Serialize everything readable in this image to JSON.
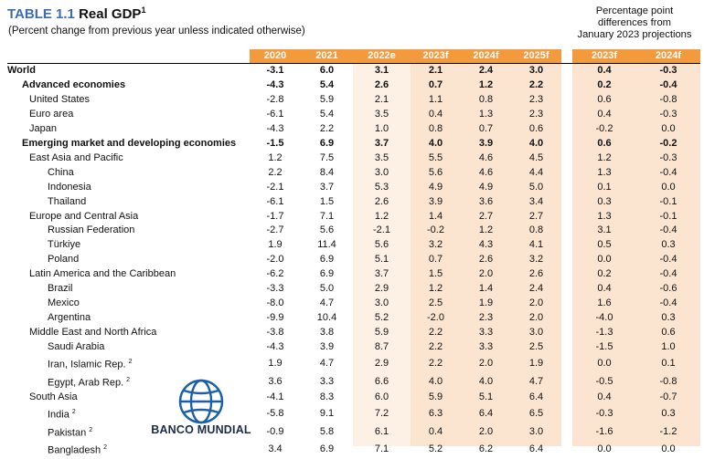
{
  "title": {
    "label": "TABLE 1.1",
    "main": "Real GDP",
    "sup": "1"
  },
  "subtitle": "(Percent change from previous year unless indicated otherwise)",
  "pp_header": [
    "Percentage point",
    "differences from",
    "January 2023 projections"
  ],
  "columns": [
    "2020",
    "2021",
    "2022e",
    "2023f",
    "2024f",
    "2025f",
    "2023f",
    "2024f"
  ],
  "logo_text": "BANCO MUNDIAL",
  "colors": {
    "header_orange": "#f39a3d",
    "light_orange": "#fbe5d0",
    "pale_orange": "#fdf1e6",
    "title_blue": "#3b6bb0"
  },
  "rows": [
    {
      "name": "World",
      "indent": 0,
      "bold": true,
      "values": [
        "-3.1",
        "6.0",
        "3.1",
        "2.1",
        "2.4",
        "3.0",
        "0.4",
        "-0.3"
      ]
    },
    {
      "name": "Advanced economies",
      "indent": 1,
      "bold": true,
      "values": [
        "-4.3",
        "5.4",
        "2.6",
        "0.7",
        "1.2",
        "2.2",
        "0.2",
        "-0.4"
      ]
    },
    {
      "name": "United States",
      "indent": 2,
      "bold": false,
      "values": [
        "-2.8",
        "5.9",
        "2.1",
        "1.1",
        "0.8",
        "2.3",
        "0.6",
        "-0.8"
      ]
    },
    {
      "name": "Euro area",
      "indent": 2,
      "bold": false,
      "values": [
        "-6.1",
        "5.4",
        "3.5",
        "0.4",
        "1.3",
        "2.3",
        "0.4",
        "-0.3"
      ]
    },
    {
      "name": "Japan",
      "indent": 2,
      "bold": false,
      "values": [
        "-4.3",
        "2.2",
        "1.0",
        "0.8",
        "0.7",
        "0.6",
        "-0.2",
        "0.0"
      ]
    },
    {
      "name": "Emerging market and developing economies",
      "indent": 1,
      "bold": true,
      "values": [
        "-1.5",
        "6.9",
        "3.7",
        "4.0",
        "3.9",
        "4.0",
        "0.6",
        "-0.2"
      ]
    },
    {
      "name": "East Asia and Pacific",
      "indent": 2,
      "bold": false,
      "values": [
        "1.2",
        "7.5",
        "3.5",
        "5.5",
        "4.6",
        "4.5",
        "1.2",
        "-0.3"
      ]
    },
    {
      "name": "China",
      "indent": 3,
      "bold": false,
      "values": [
        "2.2",
        "8.4",
        "3.0",
        "5.6",
        "4.6",
        "4.4",
        "1.3",
        "-0.4"
      ]
    },
    {
      "name": "Indonesia",
      "indent": 3,
      "bold": false,
      "values": [
        "-2.1",
        "3.7",
        "5.3",
        "4.9",
        "4.9",
        "5.0",
        "0.1",
        "0.0"
      ]
    },
    {
      "name": "Thailand",
      "indent": 3,
      "bold": false,
      "values": [
        "-6.1",
        "1.5",
        "2.6",
        "3.9",
        "3.6",
        "3.4",
        "0.3",
        "-0.1"
      ]
    },
    {
      "name": "Europe and Central Asia",
      "indent": 2,
      "bold": false,
      "values": [
        "-1.7",
        "7.1",
        "1.2",
        "1.4",
        "2.7",
        "2.7",
        "1.3",
        "-0.1"
      ]
    },
    {
      "name": "Russian Federation",
      "indent": 3,
      "bold": false,
      "values": [
        "-2.7",
        "5.6",
        "-2.1",
        "-0.2",
        "1.2",
        "0.8",
        "3.1",
        "-0.4"
      ]
    },
    {
      "name": "Türkiye",
      "indent": 3,
      "bold": false,
      "values": [
        "1.9",
        "11.4",
        "5.6",
        "3.2",
        "4.3",
        "4.1",
        "0.5",
        "0.3"
      ]
    },
    {
      "name": "Poland",
      "indent": 3,
      "bold": false,
      "values": [
        "-2.0",
        "6.9",
        "5.1",
        "0.7",
        "2.6",
        "3.2",
        "0.0",
        "-0.4"
      ]
    },
    {
      "name": "Latin America and the Caribbean",
      "indent": 2,
      "bold": false,
      "values": [
        "-6.2",
        "6.9",
        "3.7",
        "1.5",
        "2.0",
        "2.6",
        "0.2",
        "-0.4"
      ]
    },
    {
      "name": "Brazil",
      "indent": 3,
      "bold": false,
      "values": [
        "-3.3",
        "5.0",
        "2.9",
        "1.2",
        "1.4",
        "2.4",
        "0.4",
        "-0.6"
      ]
    },
    {
      "name": "Mexico",
      "indent": 3,
      "bold": false,
      "values": [
        "-8.0",
        "4.7",
        "3.0",
        "2.5",
        "1.9",
        "2.0",
        "1.6",
        "-0.4"
      ]
    },
    {
      "name": "Argentina",
      "indent": 3,
      "bold": false,
      "values": [
        "-9.9",
        "10.4",
        "5.2",
        "-2.0",
        "2.3",
        "2.0",
        "-4.0",
        "0.3"
      ]
    },
    {
      "name": "Middle East and North Africa",
      "indent": 2,
      "bold": false,
      "values": [
        "-3.8",
        "3.8",
        "5.9",
        "2.2",
        "3.3",
        "3.0",
        "-1.3",
        "0.6"
      ]
    },
    {
      "name": "Saudi Arabia",
      "indent": 3,
      "bold": false,
      "values": [
        "-4.3",
        "3.9",
        "8.7",
        "2.2",
        "3.3",
        "2.5",
        "-1.5",
        "1.0"
      ]
    },
    {
      "name": "Iran, Islamic Rep.",
      "sup": "2",
      "indent": 3,
      "bold": false,
      "values": [
        "1.9",
        "4.7",
        "2.9",
        "2.2",
        "2.0",
        "1.9",
        "0.0",
        "0.1"
      ]
    },
    {
      "name": "Egypt, Arab Rep.",
      "sup": "2",
      "indent": 3,
      "bold": false,
      "values": [
        "3.6",
        "3.3",
        "6.6",
        "4.0",
        "4.0",
        "4.7",
        "-0.5",
        "-0.8"
      ]
    },
    {
      "name": "South Asia",
      "indent": 2,
      "bold": false,
      "values": [
        "-4.1",
        "8.3",
        "6.0",
        "5.9",
        "5.1",
        "6.4",
        "0.4",
        "-0.7"
      ]
    },
    {
      "name": "India",
      "sup": "2",
      "indent": 3,
      "bold": false,
      "values": [
        "-5.8",
        "9.1",
        "7.2",
        "6.3",
        "6.4",
        "6.5",
        "-0.3",
        "0.3"
      ]
    },
    {
      "name": "Pakistan",
      "sup": "2",
      "indent": 3,
      "bold": false,
      "values": [
        "-0.9",
        "5.8",
        "6.1",
        "0.4",
        "2.0",
        "3.0",
        "-1.6",
        "-1.2"
      ]
    },
    {
      "name": "Bangladesh",
      "sup": "2",
      "indent": 3,
      "bold": false,
      "values": [
        "3.4",
        "6.9",
        "7.1",
        "5.2",
        "6.2",
        "6.4",
        "0.0",
        "0.0"
      ]
    }
  ]
}
